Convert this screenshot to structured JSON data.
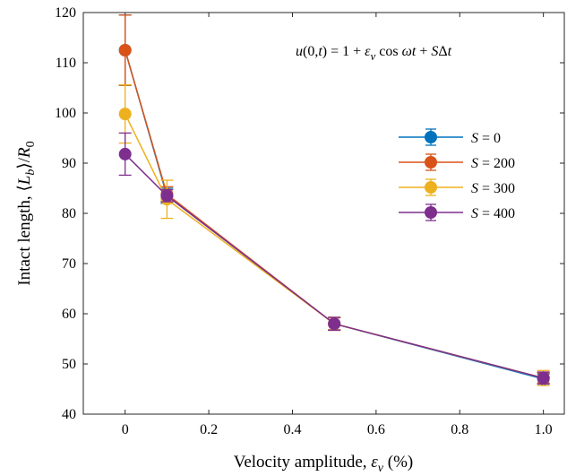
{
  "chart_data": {
    "type": "line",
    "xlabel": "Velocity amplitude, ε_v (%)",
    "ylabel": "Intact length, ⟨L_b⟩/R_0",
    "annotation": "u(0,t) = 1 + ε_v cos ωt + SΔt",
    "xlim": [
      -0.1,
      1.05
    ],
    "ylim": [
      40,
      120
    ],
    "xticks": [
      0,
      0.2,
      0.4,
      0.6,
      0.8,
      1.0
    ],
    "xtick_labels": [
      "0",
      "0.2",
      "0.4",
      "0.6",
      "0.8",
      "1.0"
    ],
    "yticks": [
      40,
      50,
      60,
      70,
      80,
      90,
      100,
      110,
      120
    ],
    "ytick_labels": [
      "40",
      "50",
      "60",
      "70",
      "80",
      "90",
      "100",
      "110",
      "120"
    ],
    "grid": false,
    "legend_position": "right",
    "x": [
      0,
      0.1,
      0.5,
      1.0
    ],
    "series": [
      {
        "name": "S = 0",
        "legend_s": "S",
        "legend_value": "0",
        "color": "#0072BD",
        "values": [
          112.5,
          83.5,
          58.0,
          47.0
        ],
        "errors": [
          7.0,
          1.5,
          1.2,
          1.0
        ]
      },
      {
        "name": "S = 200",
        "legend_s": "S",
        "legend_value": "200",
        "color": "#D95319",
        "values": [
          112.5,
          83.8,
          58.0,
          47.2
        ],
        "errors": [
          7.0,
          1.5,
          1.2,
          1.0
        ]
      },
      {
        "name": "S = 300",
        "legend_s": "S",
        "legend_value": "300",
        "color": "#EDB120",
        "values": [
          99.8,
          82.8,
          58.0,
          47.2
        ],
        "errors": [
          5.8,
          3.8,
          1.3,
          1.5
        ]
      },
      {
        "name": "S = 400",
        "legend_s": "S",
        "legend_value": "400",
        "color": "#7E2F8E",
        "values": [
          91.8,
          83.5,
          58.0,
          47.2
        ],
        "errors": [
          4.2,
          1.2,
          1.3,
          1.2
        ]
      }
    ]
  }
}
